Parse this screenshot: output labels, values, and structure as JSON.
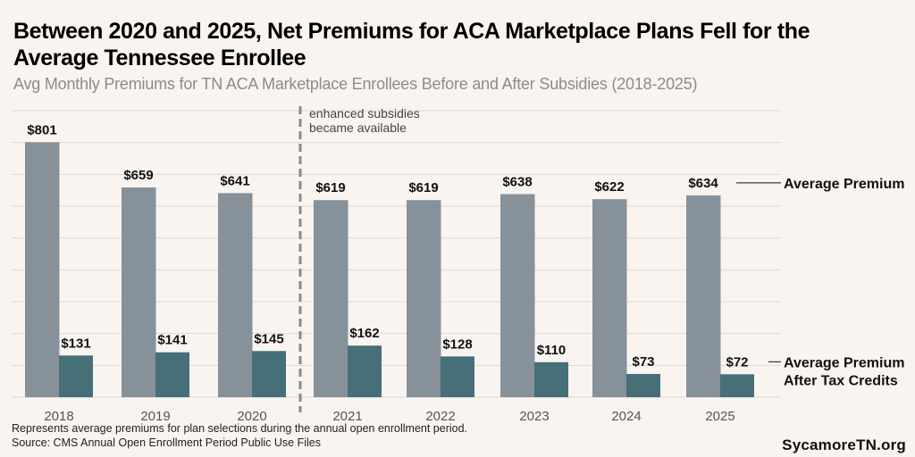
{
  "chart_data": {
    "type": "bar",
    "title": "Between 2020 and 2025, Net Premiums for ACA Marketplace Plans Fell for the Average Tennessee Enrollee",
    "subtitle": "Avg Monthly Premiums for TN ACA Marketplace Enrollees Before and After Subsidies (2018-2025)",
    "xlabel": "",
    "ylabel": "",
    "ylim": [
      0,
      900
    ],
    "grid": true,
    "gridlines": [
      0,
      100,
      200,
      300,
      400,
      500,
      600,
      700,
      800,
      900
    ],
    "categories": [
      "2018",
      "2019",
      "2020",
      "2021",
      "2022",
      "2023",
      "2024",
      "2025"
    ],
    "series": [
      {
        "name": "Average Premium",
        "color": "#87919a",
        "values": [
          801,
          659,
          641,
          619,
          619,
          638,
          622,
          634
        ],
        "labels": [
          "$801",
          "$659",
          "$641",
          "$619",
          "$619",
          "$638",
          "$622",
          "$634"
        ]
      },
      {
        "name": "Average Premium After Tax Credits",
        "color": "#466f77",
        "values": [
          131,
          141,
          145,
          162,
          128,
          110,
          73,
          72
        ],
        "labels": [
          "$131",
          "$141",
          "$145",
          "$162",
          "$128",
          "$110",
          "$73",
          "$72"
        ]
      }
    ],
    "legend": {
      "placement": "right",
      "entries": [
        {
          "lines": [
            "Average Premium"
          ]
        },
        {
          "lines": [
            "Average Premium",
            "After Tax Credits"
          ]
        }
      ]
    },
    "annotations": [
      {
        "type": "vertical-dashed-line",
        "between": [
          "2020",
          "2021"
        ],
        "text_lines": [
          "enhanced subsidies",
          "became available"
        ],
        "color": "#8a8a8a"
      }
    ]
  },
  "footer": {
    "note": "Represents average premiums for plan selections during the annual open enrollment period.",
    "source": "Source: CMS Annual Open Enrollment Period Public Use Files",
    "brand": "SycamoreTN.org"
  },
  "colors": {
    "background": "#f9f4f0",
    "gridline": "#dcd8d5",
    "title": "#000000",
    "subtitle": "#8c8c8c"
  }
}
